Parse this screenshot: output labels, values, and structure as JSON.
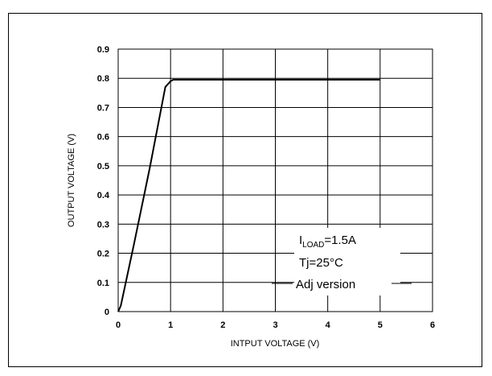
{
  "chart_data": {
    "type": "line",
    "title": "",
    "xlabel": "INTPUT VOLTAGE (V)",
    "ylabel": "OUTPUT VOLTAGE (V)",
    "xlim": [
      0,
      6
    ],
    "ylim": [
      0,
      0.9
    ],
    "x_ticks": [
      "0",
      "1",
      "2",
      "3",
      "4",
      "5",
      "6"
    ],
    "y_ticks": [
      "0",
      "0.1",
      "0.2",
      "0.3",
      "0.4",
      "0.5",
      "0.6",
      "0.7",
      "0.8",
      "0.9"
    ],
    "grid": true,
    "series": [
      {
        "x": [
          0,
          0.05,
          0.3,
          0.6,
          0.9,
          1.0,
          1.05,
          1.5,
          5.0
        ],
        "y": [
          0,
          0.02,
          0.23,
          0.49,
          0.77,
          0.79,
          0.795,
          0.795,
          0.795
        ]
      }
    ],
    "annotations": {
      "load_main": "I",
      "load_sub": "LOAD",
      "load_value": "=1.5A",
      "temperature": "Tj=25°C",
      "version": "Adj version"
    }
  },
  "colors": {
    "line": "#000000",
    "grid": "#000000",
    "background": "#ffffff"
  }
}
